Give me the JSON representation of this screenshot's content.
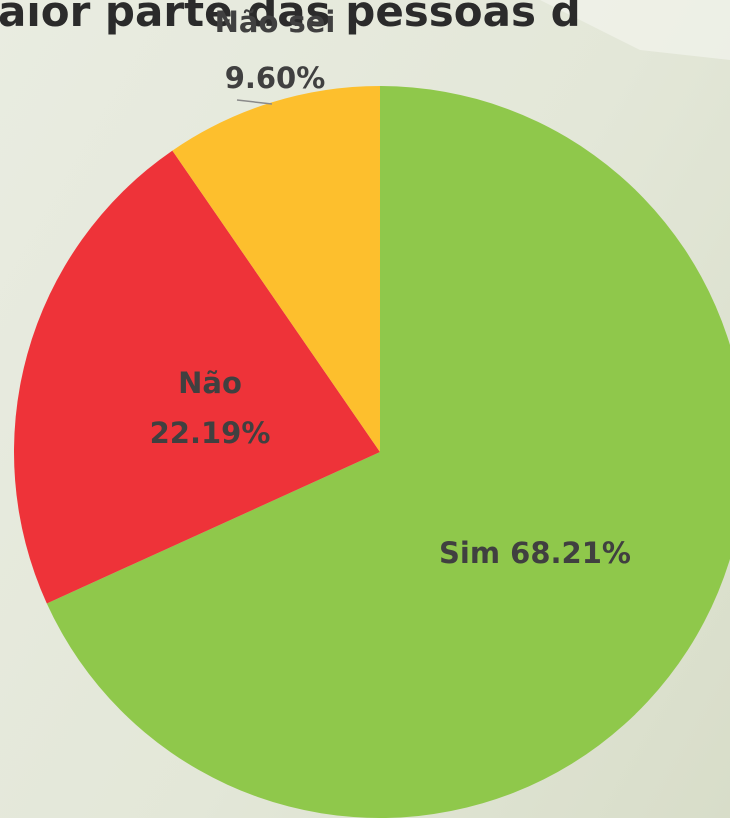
{
  "chart_data": {
    "type": "pie",
    "title": "aior parte das pessoas d",
    "categories": [
      "Sim",
      "Não",
      "Não sei"
    ],
    "values": [
      68.21,
      22.19,
      9.6
    ],
    "value_labels": [
      "68.21%",
      "22.19%",
      "9.60%"
    ],
    "colors": [
      "#8fc84b",
      "#ee3339",
      "#fdbf2d"
    ]
  }
}
